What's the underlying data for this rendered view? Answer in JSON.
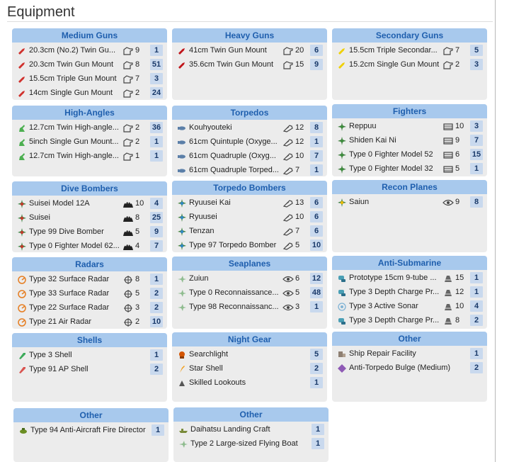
{
  "page": {
    "title": "Equipment"
  },
  "panels": [
    {
      "id": "medium-guns",
      "header": "Medium Guns",
      "items": [
        {
          "name": "20.3cm (No.2) Twin Gu...",
          "icon": "gun-icon",
          "color": "#d0312d",
          "stat_icon": "fit-icon",
          "stat": "9",
          "count": "1"
        },
        {
          "name": "20.3cm Twin Gun Mount",
          "icon": "gun-icon",
          "color": "#d0312d",
          "stat_icon": "fit-icon",
          "stat": "8",
          "count": "51"
        },
        {
          "name": "15.5cm Triple Gun Mount",
          "icon": "gun-icon",
          "color": "#d0312d",
          "stat_icon": "fit-icon",
          "stat": "7",
          "count": "3"
        },
        {
          "name": "14cm Single Gun Mount",
          "icon": "gun-icon",
          "color": "#d0312d",
          "stat_icon": "fit-icon",
          "stat": "2",
          "count": "24"
        }
      ]
    },
    {
      "id": "heavy-guns",
      "header": "Heavy Guns",
      "items": [
        {
          "name": "41cm Twin Gun Mount",
          "icon": "gun-icon",
          "color": "#c0151a",
          "stat_icon": "fit-icon",
          "stat": "20",
          "count": "6"
        },
        {
          "name": "35.6cm Twin Gun Mount",
          "icon": "gun-icon",
          "color": "#c0151a",
          "stat_icon": "fit-icon",
          "stat": "15",
          "count": "9"
        }
      ]
    },
    {
      "id": "secondary-guns",
      "header": "Secondary Guns",
      "items": [
        {
          "name": "15.5cm Triple Secondar...",
          "icon": "gun-icon",
          "color": "#f0d000",
          "stat_icon": "fit-icon",
          "stat": "7",
          "count": "5"
        },
        {
          "name": "15.2cm Single Gun Mount",
          "icon": "gun-icon",
          "color": "#f0d000",
          "stat_icon": "fit-icon",
          "stat": "2",
          "count": "3"
        }
      ]
    },
    {
      "id": "high-angles",
      "header": "High-Angles",
      "items": [
        {
          "name": "12.7cm Twin High-angle...",
          "icon": "aa-gun-icon",
          "color": "#4caf50",
          "stat_icon": "fit-icon",
          "stat": "2",
          "count": "36"
        },
        {
          "name": "5inch Single Gun Mount...",
          "icon": "aa-gun-icon",
          "color": "#4caf50",
          "stat_icon": "fit-icon",
          "stat": "2",
          "count": "1"
        },
        {
          "name": "12.7cm Twin High-angle...",
          "icon": "aa-gun-icon",
          "color": "#4caf50",
          "stat_icon": "fit-icon",
          "stat": "1",
          "count": "1"
        }
      ]
    },
    {
      "id": "torpedos",
      "header": "Torpedos",
      "items": [
        {
          "name": "Kouhyouteki",
          "icon": "torpedo-icon",
          "color": "#5b7fa8",
          "stat_icon": "torpedo-stat-icon",
          "stat": "12",
          "count": "8"
        },
        {
          "name": "61cm Quintuple (Oxyge...",
          "icon": "torpedo-icon",
          "color": "#5b7fa8",
          "stat_icon": "torpedo-stat-icon",
          "stat": "12",
          "count": "1"
        },
        {
          "name": "61cm Quadruple (Oxyg...",
          "icon": "torpedo-icon",
          "color": "#5b7fa8",
          "stat_icon": "torpedo-stat-icon",
          "stat": "10",
          "count": "7"
        },
        {
          "name": "61cm Quadruple Torped...",
          "icon": "torpedo-icon",
          "color": "#5b7fa8",
          "stat_icon": "torpedo-stat-icon",
          "stat": "7",
          "count": "1"
        }
      ]
    },
    {
      "id": "fighters",
      "header": "Fighters",
      "items": [
        {
          "name": "Reppuu",
          "icon": "fighter-icon",
          "color": "#3d8b3d",
          "stat_icon": "aa-stat-icon",
          "stat": "10",
          "count": "3"
        },
        {
          "name": "Shiden Kai Ni",
          "icon": "fighter-icon",
          "color": "#3d8b3d",
          "stat_icon": "aa-stat-icon",
          "stat": "9",
          "count": "7"
        },
        {
          "name": "Type 0 Fighter Model 52",
          "icon": "fighter-icon",
          "color": "#3d8b3d",
          "stat_icon": "aa-stat-icon",
          "stat": "6",
          "count": "15"
        },
        {
          "name": "Type 0 Fighter Model 32",
          "icon": "fighter-icon",
          "color": "#3d8b3d",
          "stat_icon": "aa-stat-icon",
          "stat": "5",
          "count": "1"
        }
      ]
    },
    {
      "id": "dive-bombers",
      "header": "Dive Bombers",
      "items": [
        {
          "name": "Suisei Model 12A",
          "icon": "bomber-icon",
          "color": "#c0392b",
          "stat_icon": "bomb-stat-icon",
          "stat": "10",
          "count": "4"
        },
        {
          "name": "Suisei",
          "icon": "bomber-icon",
          "color": "#c0392b",
          "stat_icon": "bomb-stat-icon",
          "stat": "8",
          "count": "25"
        },
        {
          "name": "Type 99 Dive Bomber",
          "icon": "bomber-icon",
          "color": "#c0392b",
          "stat_icon": "bomb-stat-icon",
          "stat": "5",
          "count": "9"
        },
        {
          "name": "Type 0 Fighter Model 62...",
          "icon": "bomber-icon",
          "color": "#c0392b",
          "stat_icon": "bomb-stat-icon",
          "stat": "4",
          "count": "7"
        }
      ]
    },
    {
      "id": "torpedo-bombers",
      "header": "Torpedo Bombers",
      "items": [
        {
          "name": "Ryuusei Kai",
          "icon": "torpedo-bomber-icon",
          "color": "#2e86c1",
          "stat_icon": "torpedo-stat-icon",
          "stat": "13",
          "count": "6"
        },
        {
          "name": "Ryuusei",
          "icon": "torpedo-bomber-icon",
          "color": "#2e86c1",
          "stat_icon": "torpedo-stat-icon",
          "stat": "10",
          "count": "6"
        },
        {
          "name": "Tenzan",
          "icon": "torpedo-bomber-icon",
          "color": "#2e86c1",
          "stat_icon": "torpedo-stat-icon",
          "stat": "7",
          "count": "6"
        },
        {
          "name": "Type 97 Torpedo Bomber",
          "icon": "torpedo-bomber-icon",
          "color": "#2e86c1",
          "stat_icon": "torpedo-stat-icon",
          "stat": "5",
          "count": "10"
        }
      ]
    },
    {
      "id": "recon-planes",
      "header": "Recon Planes",
      "items": [
        {
          "name": "Saiun",
          "icon": "recon-plane-icon",
          "color": "#e6b800",
          "stat_icon": "eye-icon",
          "stat": "9",
          "count": "8"
        }
      ]
    },
    {
      "id": "radars",
      "header": "Radars",
      "items": [
        {
          "name": "Type 32 Surface Radar",
          "icon": "radar-icon",
          "color": "#e67e22",
          "stat_icon": "crosshair-icon",
          "stat": "8",
          "count": "1"
        },
        {
          "name": "Type 33 Surface Radar",
          "icon": "radar-icon",
          "color": "#e67e22",
          "stat_icon": "crosshair-icon",
          "stat": "5",
          "count": "2"
        },
        {
          "name": "Type 22 Surface Radar",
          "icon": "radar-icon",
          "color": "#e67e22",
          "stat_icon": "crosshair-icon",
          "stat": "3",
          "count": "2"
        },
        {
          "name": "Type 21 Air Radar",
          "icon": "radar-icon",
          "color": "#e67e22",
          "stat_icon": "crosshair-icon",
          "stat": "2",
          "count": "10"
        }
      ]
    },
    {
      "id": "seaplanes",
      "header": "Seaplanes",
      "items": [
        {
          "name": "Zuiun",
          "icon": "seaplane-icon",
          "color": "#8fbc8f",
          "stat_icon": "eye-icon",
          "stat": "6",
          "count": "12"
        },
        {
          "name": "Type 0 Reconnaissance...",
          "icon": "seaplane-icon",
          "color": "#8fbc8f",
          "stat_icon": "eye-icon",
          "stat": "5",
          "count": "48"
        },
        {
          "name": "Type 98 Reconnaissanc...",
          "icon": "seaplane-icon",
          "color": "#8fbc8f",
          "stat_icon": "eye-icon",
          "stat": "3",
          "count": "1"
        }
      ]
    },
    {
      "id": "anti-submarine",
      "header": "Anti-Submarine",
      "items": [
        {
          "name": "Prototype 15cm 9-tube ...",
          "icon": "asw-icon",
          "color": "#4a9fb5",
          "stat_icon": "sonar-stat-icon",
          "stat": "15",
          "count": "1"
        },
        {
          "name": "Type 3 Depth Charge Pr...",
          "icon": "asw-icon",
          "color": "#4a9fb5",
          "stat_icon": "sonar-stat-icon",
          "stat": "12",
          "count": "1"
        },
        {
          "name": "Type 3 Active Sonar",
          "icon": "sonar-icon",
          "color": "#7fb3d5",
          "stat_icon": "sonar-stat-icon",
          "stat": "10",
          "count": "4"
        },
        {
          "name": "Type 3 Depth Charge Pr...",
          "icon": "asw-icon",
          "color": "#4a9fb5",
          "stat_icon": "sonar-stat-icon",
          "stat": "8",
          "count": "2"
        }
      ]
    },
    {
      "id": "shells",
      "header": "Shells",
      "items": [
        {
          "name": "Type 3 Shell",
          "icon": "shell-icon",
          "color": "#3caa5a",
          "stat_icon": "",
          "stat": "",
          "count": "1"
        },
        {
          "name": "Type 91 AP Shell",
          "icon": "shell-icon",
          "color": "#d9534f",
          "stat_icon": "",
          "stat": "",
          "count": "2"
        }
      ]
    },
    {
      "id": "night-gear",
      "header": "Night Gear",
      "items": [
        {
          "name": "Searchlight",
          "icon": "searchlight-icon",
          "color": "#d35400",
          "stat_icon": "",
          "stat": "",
          "count": "5"
        },
        {
          "name": "Star Shell",
          "icon": "star-shell-icon",
          "color": "#f39c12",
          "stat_icon": "",
          "stat": "",
          "count": "2"
        },
        {
          "name": "Skilled Lookouts",
          "icon": "lookout-icon",
          "color": "#555555",
          "stat_icon": "",
          "stat": "",
          "count": "1"
        }
      ]
    },
    {
      "id": "other-1",
      "header": "Other",
      "items": [
        {
          "name": "Ship Repair Facility",
          "icon": "repair-icon",
          "color": "#8e7f72",
          "stat_icon": "",
          "stat": "",
          "count": "1"
        },
        {
          "name": "Anti-Torpedo Bulge (Medium)",
          "icon": "bulge-icon",
          "color": "#8e5ab5",
          "stat_icon": "",
          "stat": "",
          "count": "2"
        }
      ]
    },
    {
      "id": "other-2",
      "header": "Other",
      "items": [
        {
          "name": "Type 94 Anti-Aircraft Fire Director",
          "icon": "director-icon",
          "color": "#6b8e23",
          "stat_icon": "",
          "stat": "",
          "count": "1"
        }
      ]
    },
    {
      "id": "other-3",
      "header": "Other",
      "items": [
        {
          "name": "Daihatsu Landing Craft",
          "icon": "landing-craft-icon",
          "color": "#7a8b3a",
          "stat_icon": "",
          "stat": "",
          "count": "1"
        },
        {
          "name": "Type 2 Large-sized Flying Boat",
          "icon": "flying-boat-icon",
          "color": "#8fbc8f",
          "stat_icon": "",
          "stat": "",
          "count": "1"
        }
      ]
    }
  ]
}
